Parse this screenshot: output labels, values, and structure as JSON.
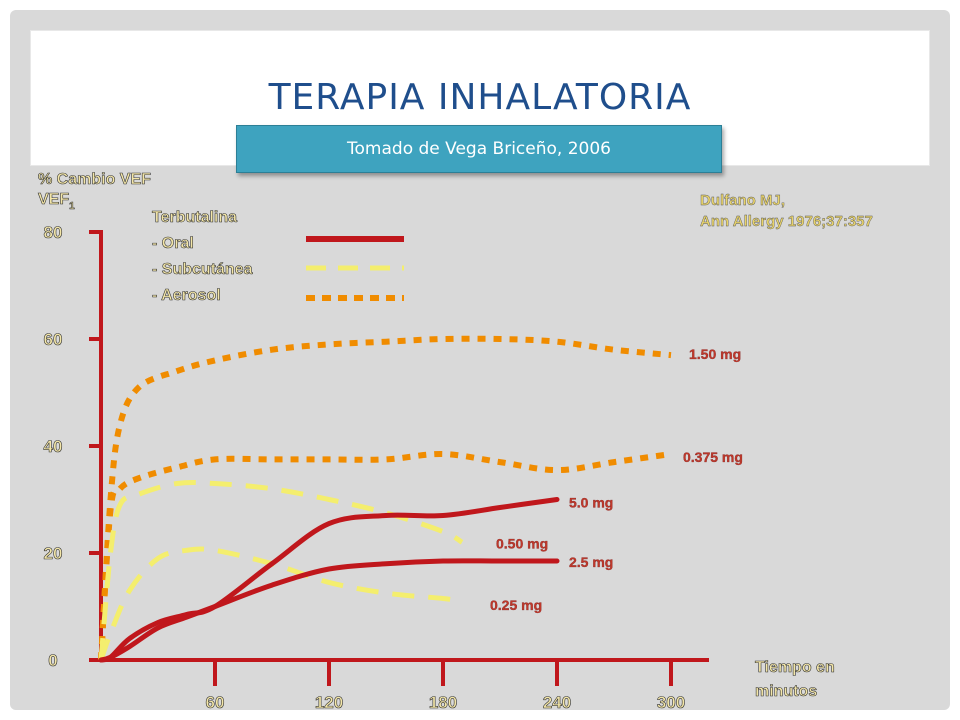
{
  "title": "TERAPIA INHALATORIA",
  "source_note": "Tomado de Vega Briceño, 2006",
  "citation": [
    "Dulfano MJ,",
    "Ann Allergy 1976;37:357"
  ],
  "colors": {
    "oral": "#c0171c",
    "subcutanea": "#f4ee6e",
    "aerosol": "#f08c00",
    "axis": "#c0171c",
    "title": "#1f4e8c"
  },
  "chart_data": {
    "type": "line",
    "title": "Terapia inhalatoria",
    "ylabel": "% Cambio VEF",
    "ylabel_sub": "1",
    "xlabel": [
      "Tiempo en",
      "minutos"
    ],
    "xlim": [
      0,
      320
    ],
    "ylim": [
      0,
      80
    ],
    "x_ticks": [
      "60",
      "120",
      "180",
      "240",
      "300"
    ],
    "x_tick_values": [
      60,
      120,
      180,
      240,
      300
    ],
    "y_ticks": [
      "80",
      "60",
      "40",
      "20",
      "0"
    ],
    "y_tick_values": [
      80,
      60,
      40,
      20,
      0
    ],
    "legend": {
      "heading": "Terbutalina",
      "items": [
        {
          "label": "- Oral",
          "style": "solid",
          "color_key": "oral"
        },
        {
          "label": "- Subcutánea",
          "style": "dashed",
          "color_key": "subcutanea"
        },
        {
          "label": "- Aerosol",
          "style": "dotted",
          "color_key": "aerosol"
        }
      ]
    },
    "series": [
      {
        "name": "Aerosol 1.50 mg",
        "route": "aerosol",
        "label": "1.50 mg",
        "x": [
          0,
          5,
          10,
          20,
          40,
          60,
          90,
          120,
          150,
          180,
          210,
          240,
          270,
          300
        ],
        "y": [
          0,
          30,
          44,
          51,
          54,
          56,
          58,
          59,
          59.5,
          60,
          60,
          59.5,
          58,
          57
        ]
      },
      {
        "name": "Aerosol 0.375 mg",
        "route": "aerosol",
        "label": "0.375 mg",
        "x": [
          0,
          5,
          10,
          20,
          40,
          60,
          90,
          120,
          150,
          180,
          210,
          240,
          270,
          300
        ],
        "y": [
          0,
          28,
          32,
          34,
          36,
          37.5,
          37.5,
          37.5,
          37.5,
          38.5,
          37,
          35.5,
          37,
          38.5
        ]
      },
      {
        "name": "Subcutánea 0.50 mg",
        "route": "subcutanea",
        "label": "0.50 mg",
        "x": [
          0,
          5,
          10,
          20,
          40,
          60,
          90,
          120,
          150,
          180,
          190
        ],
        "y": [
          0,
          20,
          29,
          31,
          33,
          33,
          32,
          30,
          27.5,
          24,
          22
        ]
      },
      {
        "name": "Subcutánea 0.25 mg",
        "route": "subcutanea",
        "label": "0.25 mg",
        "x": [
          0,
          5,
          15,
          30,
          45,
          60,
          90,
          120,
          150,
          180,
          190
        ],
        "y": [
          0,
          5,
          13,
          19,
          20.5,
          20.5,
          18,
          14.5,
          12.5,
          11.5,
          11
        ]
      },
      {
        "name": "Oral 5.0 mg",
        "route": "oral",
        "label": "5.0 mg",
        "x": [
          0,
          5,
          15,
          30,
          45,
          60,
          90,
          120,
          150,
          180,
          210,
          240
        ],
        "y": [
          0,
          0.5,
          4,
          7,
          8.5,
          10,
          18,
          25.5,
          27,
          27,
          28.5,
          30
        ]
      },
      {
        "name": "Oral 2.5 mg",
        "route": "oral",
        "label": "2.5 mg",
        "x": [
          0,
          5,
          15,
          30,
          45,
          60,
          90,
          120,
          150,
          180,
          210,
          240
        ],
        "y": [
          0,
          0.5,
          2.5,
          6,
          8,
          10,
          14,
          17,
          18,
          18.5,
          18.5,
          18.5
        ]
      }
    ]
  }
}
